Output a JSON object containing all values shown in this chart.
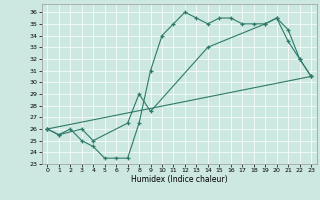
{
  "xlabel": "Humidex (Indice chaleur)",
  "background_color": "#cce8e0",
  "line_color": "#2d7a6a",
  "xlim": [
    -0.5,
    23.5
  ],
  "ylim": [
    23,
    36.7
  ],
  "yticks": [
    23,
    24,
    25,
    26,
    27,
    28,
    29,
    30,
    31,
    32,
    33,
    34,
    35,
    36
  ],
  "xticks": [
    0,
    1,
    2,
    3,
    4,
    5,
    6,
    7,
    8,
    9,
    10,
    11,
    12,
    13,
    14,
    15,
    16,
    17,
    18,
    19,
    20,
    21,
    22,
    23
  ],
  "series1_x": [
    0,
    1,
    2,
    3,
    4,
    5,
    6,
    7,
    8,
    9,
    10,
    11,
    12,
    13,
    14,
    15,
    16,
    17,
    18,
    19,
    20,
    21,
    22,
    23
  ],
  "series1_y": [
    26.0,
    25.5,
    26.0,
    25.0,
    24.5,
    23.5,
    23.5,
    23.5,
    26.5,
    31.0,
    34.0,
    35.0,
    36.0,
    35.5,
    35.0,
    35.5,
    35.5,
    35.0,
    35.0,
    35.0,
    35.5,
    33.5,
    32.0,
    30.5
  ],
  "series2_x": [
    0,
    1,
    3,
    4,
    7,
    8,
    9,
    14,
    19,
    20,
    21,
    22,
    23
  ],
  "series2_y": [
    26.0,
    25.5,
    26.0,
    25.0,
    26.5,
    29.0,
    27.5,
    33.0,
    35.0,
    35.5,
    34.5,
    32.0,
    30.5
  ],
  "series3_x": [
    0,
    23
  ],
  "series3_y": [
    26.0,
    30.5
  ]
}
